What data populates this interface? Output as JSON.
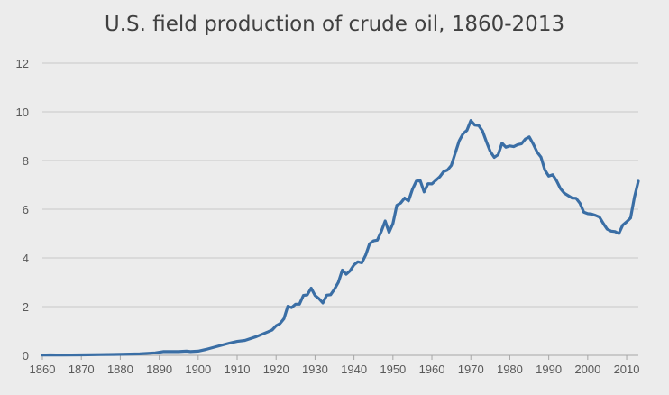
{
  "chart_data": {
    "type": "line",
    "title": "U.S. field production of crude oil, 1860-2013",
    "xlabel": "",
    "ylabel": "",
    "xlim": [
      1860,
      2013
    ],
    "ylim": [
      0,
      12
    ],
    "yticks": [
      0,
      2,
      4,
      6,
      8,
      10,
      12
    ],
    "xticks": [
      1860,
      1870,
      1880,
      1890,
      1900,
      1910,
      1920,
      1930,
      1940,
      1950,
      1960,
      1970,
      1980,
      1990,
      2000,
      2010
    ],
    "grid": true,
    "legend": "none",
    "colors": {
      "series": "#3a6ea5",
      "grid": "#c9c9c9",
      "background": "#ececec"
    },
    "series": [
      {
        "x": [
          1860,
          1862,
          1865,
          1870,
          1875,
          1880,
          1885,
          1889,
          1891,
          1895,
          1897,
          1898,
          1900,
          1902,
          1905,
          1908,
          1910,
          1912,
          1915,
          1918,
          1919,
          1920,
          1921,
          1922,
          1923,
          1924,
          1925,
          1926,
          1927,
          1928,
          1929,
          1930,
          1931,
          1932,
          1933,
          1934,
          1935,
          1936,
          1937,
          1938,
          1939,
          1940,
          1941,
          1942,
          1943,
          1944,
          1945,
          1946,
          1947,
          1948,
          1949,
          1950,
          1951,
          1952,
          1953,
          1954,
          1955,
          1956,
          1957,
          1958,
          1959,
          1960,
          1961,
          1962,
          1963,
          1964,
          1965,
          1966,
          1967,
          1968,
          1969,
          1970,
          1971,
          1972,
          1973,
          1974,
          1975,
          1976,
          1977,
          1978,
          1979,
          1980,
          1981,
          1982,
          1983,
          1984,
          1985,
          1986,
          1987,
          1988,
          1989,
          1990,
          1991,
          1992,
          1993,
          1994,
          1995,
          1996,
          1997,
          1998,
          1999,
          2000,
          2001,
          2002,
          2003,
          2004,
          2005,
          2006,
          2007,
          2008,
          2009,
          2010,
          2011,
          2012,
          2013
        ],
        "y": [
          0.01,
          0.02,
          0.01,
          0.02,
          0.03,
          0.04,
          0.06,
          0.1,
          0.15,
          0.15,
          0.17,
          0.15,
          0.17,
          0.24,
          0.37,
          0.5,
          0.57,
          0.61,
          0.77,
          0.97,
          1.04,
          1.21,
          1.3,
          1.5,
          2.01,
          1.96,
          2.1,
          2.1,
          2.46,
          2.48,
          2.76,
          2.46,
          2.33,
          2.15,
          2.47,
          2.49,
          2.72,
          3.0,
          3.5,
          3.33,
          3.47,
          3.71,
          3.84,
          3.8,
          4.12,
          4.58,
          4.7,
          4.73,
          5.09,
          5.52,
          5.05,
          5.41,
          6.16,
          6.26,
          6.46,
          6.34,
          6.81,
          7.15,
          7.17,
          6.71,
          7.05,
          7.04,
          7.18,
          7.33,
          7.54,
          7.61,
          7.8,
          8.3,
          8.81,
          9.1,
          9.24,
          9.64,
          9.46,
          9.44,
          9.21,
          8.77,
          8.37,
          8.13,
          8.24,
          8.71,
          8.55,
          8.6,
          8.57,
          8.65,
          8.69,
          8.88,
          8.97,
          8.68,
          8.35,
          8.14,
          7.61,
          7.36,
          7.42,
          7.17,
          6.85,
          6.66,
          6.56,
          6.46,
          6.45,
          6.25,
          5.88,
          5.82,
          5.8,
          5.75,
          5.68,
          5.42,
          5.18,
          5.1,
          5.08,
          5.0,
          5.35,
          5.48,
          5.64,
          6.5,
          7.15
        ]
      }
    ]
  }
}
